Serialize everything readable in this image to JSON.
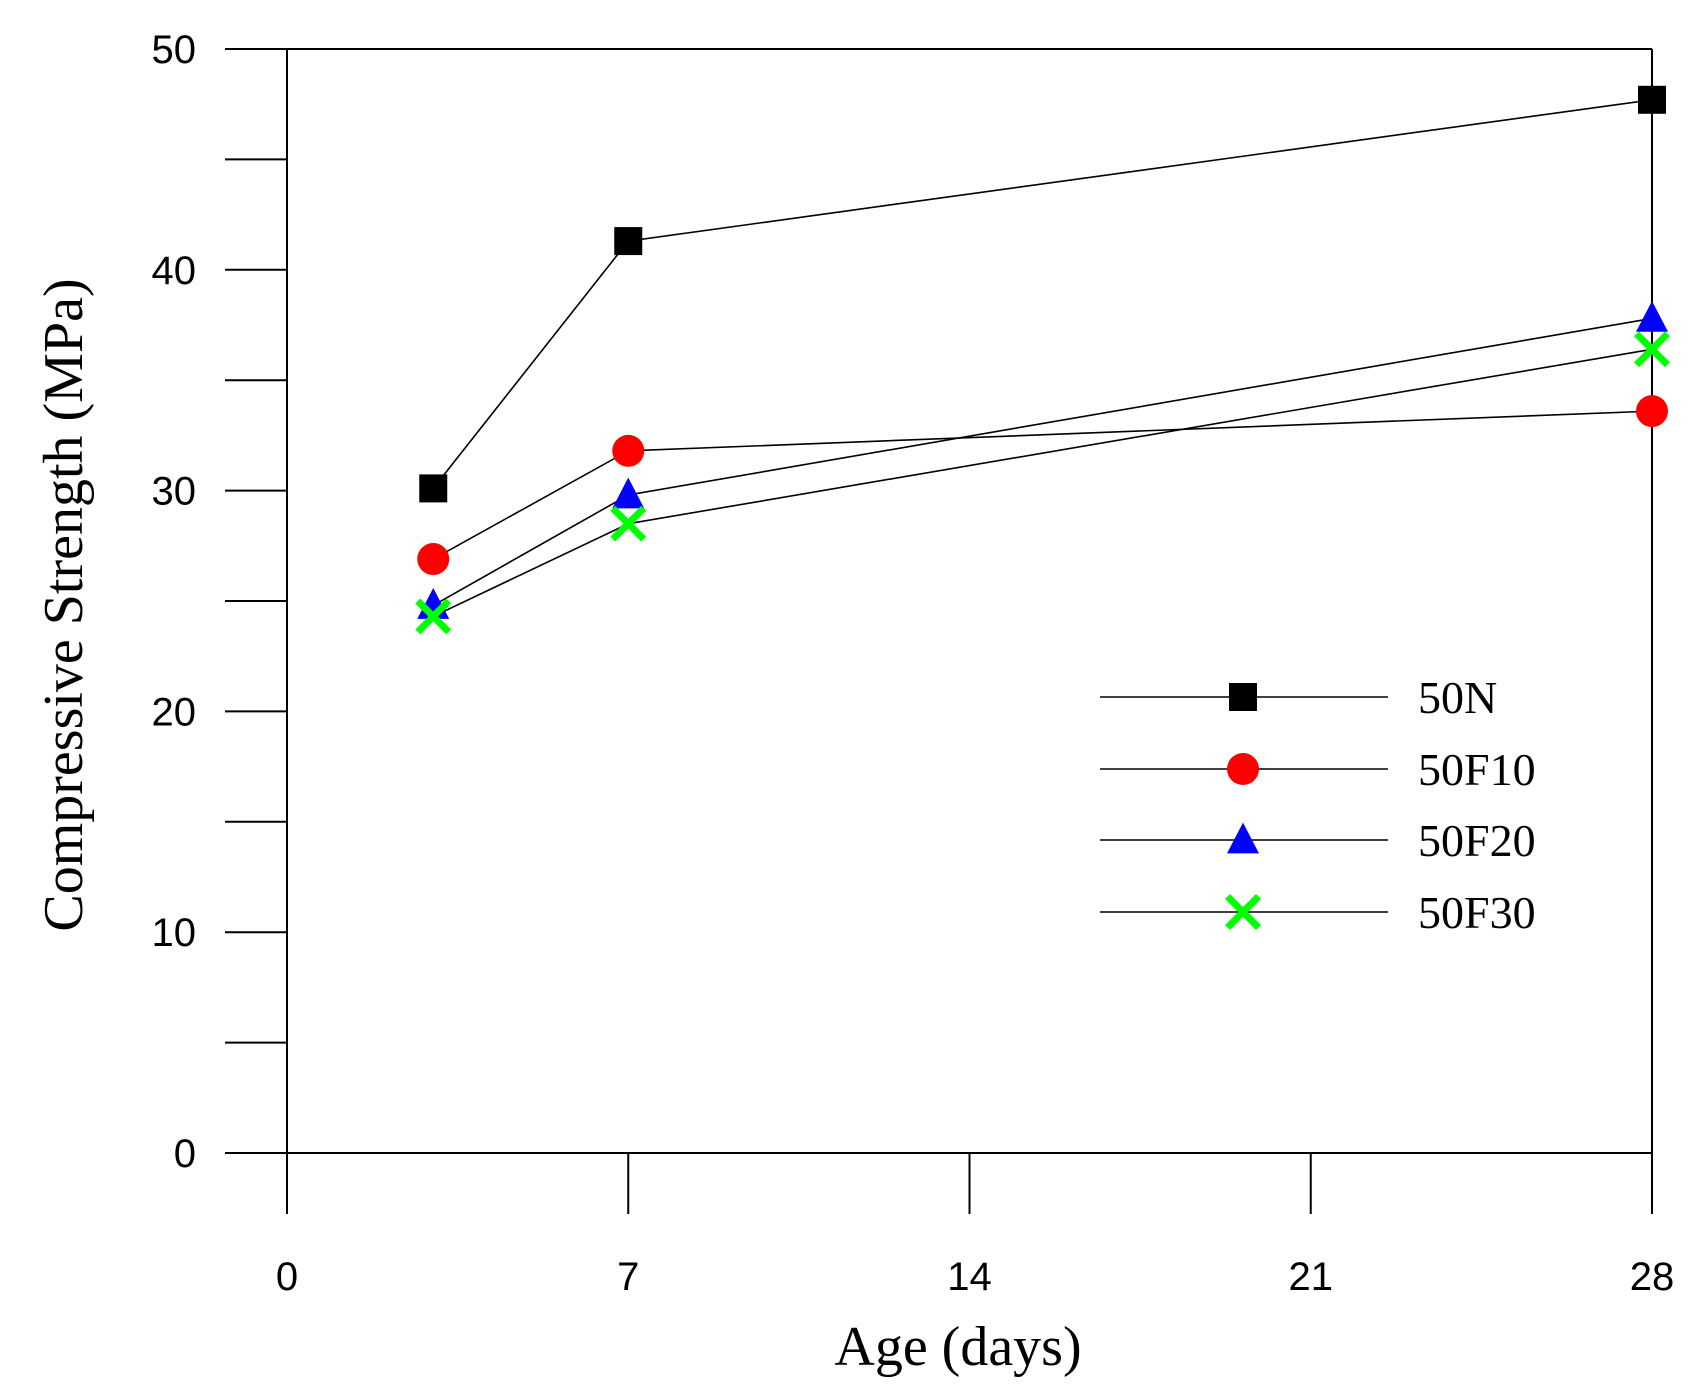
{
  "chart_data": {
    "type": "line",
    "title": "",
    "xlabel": "Age (days)",
    "ylabel": "Compressive Strength (MPa)",
    "xlim": [
      0,
      28
    ],
    "ylim": [
      0,
      50
    ],
    "xticks": [
      0,
      7,
      14,
      21,
      28
    ],
    "yticks": [
      0,
      10,
      20,
      30,
      40,
      50
    ],
    "x": [
      3,
      7,
      28
    ],
    "grid": false,
    "legend_position": "center-right",
    "series": [
      {
        "name": "50N",
        "marker": "square",
        "color": "#000000",
        "values": [
          30.1,
          41.3,
          47.7
        ]
      },
      {
        "name": "50F10",
        "marker": "circle",
        "color": "#ff0000",
        "values": [
          26.9,
          31.8,
          33.6
        ]
      },
      {
        "name": "50F20",
        "marker": "triangle",
        "color": "#0000ff",
        "values": [
          24.8,
          29.8,
          37.8
        ]
      },
      {
        "name": "50F30",
        "marker": "x",
        "color": "#00ff00",
        "values": [
          24.3,
          28.5,
          36.4
        ]
      }
    ]
  }
}
